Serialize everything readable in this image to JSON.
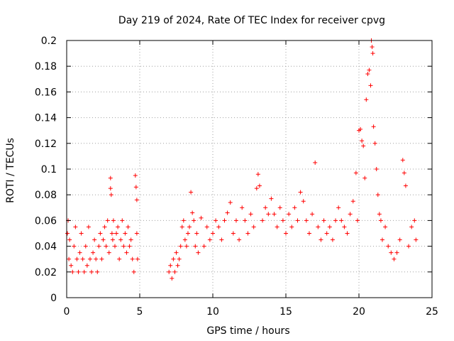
{
  "chart_data": {
    "type": "scatter",
    "title": "Day 219 of 2024, Rate Of TEC Index for receiver cpvg",
    "xlabel": "GPS time / hours",
    "ylabel": "ROTI / TECUs",
    "xlim": [
      0,
      25
    ],
    "ylim": [
      0,
      0.2
    ],
    "xticks": [
      "0",
      "5",
      "10",
      "15",
      "20",
      "25"
    ],
    "yticks": [
      "0",
      "0.02",
      "0.04",
      "0.06",
      "0.08",
      "0.1",
      "0.12",
      "0.14",
      "0.16",
      "0.18",
      "0.2"
    ],
    "grid": true,
    "marker": "+",
    "color": "#ff0000",
    "series": [
      {
        "x": [
          0.05,
          0.1,
          0.15,
          0.2,
          0.3,
          0.4,
          0.5,
          0.6,
          0.7,
          0.8,
          0.9,
          1.0,
          1.1,
          1.2,
          1.3,
          1.4,
          1.5,
          1.6,
          1.7,
          1.8,
          1.9,
          2.0,
          2.1,
          2.2,
          2.3,
          2.4,
          2.5,
          2.6,
          2.7,
          2.8,
          2.9,
          3.0,
          3.0,
          3.05,
          3.1,
          3.15,
          3.2,
          3.3,
          3.4,
          3.5,
          3.6,
          3.7,
          3.8,
          3.9,
          4.0,
          4.1,
          4.2,
          4.3,
          4.4,
          4.5,
          4.6,
          4.7,
          4.75,
          4.8,
          4.8,
          4.85,
          7.0,
          7.1,
          7.2,
          7.3,
          7.4,
          7.5,
          7.6,
          7.7,
          7.8,
          7.9,
          8.0,
          8.1,
          8.2,
          8.3,
          8.4,
          8.5,
          8.6,
          8.7,
          8.8,
          8.9,
          9.0,
          9.2,
          9.4,
          9.6,
          9.8,
          10.0,
          10.2,
          10.4,
          10.6,
          10.8,
          11.0,
          11.2,
          11.4,
          11.6,
          11.8,
          12.0,
          12.2,
          12.4,
          12.6,
          12.8,
          13.0,
          13.1,
          13.2,
          13.4,
          13.6,
          13.8,
          14.0,
          14.2,
          14.4,
          14.6,
          14.8,
          15.0,
          15.2,
          15.4,
          15.6,
          15.8,
          16.0,
          16.2,
          16.4,
          16.6,
          16.8,
          17.0,
          17.2,
          17.4,
          17.6,
          17.8,
          18.0,
          18.2,
          18.4,
          18.6,
          18.8,
          19.0,
          19.2,
          19.4,
          19.6,
          19.8,
          19.9,
          20.0,
          20.1,
          20.2,
          20.3,
          20.4,
          20.5,
          20.6,
          20.7,
          20.8,
          20.85,
          20.9,
          20.95,
          21.0,
          21.1,
          21.2,
          21.3,
          21.4,
          21.5,
          21.6,
          21.8,
          22.0,
          22.2,
          22.4,
          22.6,
          22.8,
          23.0,
          23.1,
          23.2,
          23.4,
          23.6,
          23.8,
          23.9
        ],
        "y": [
          0.05,
          0.06,
          0.03,
          0.045,
          0.025,
          0.02,
          0.04,
          0.055,
          0.03,
          0.02,
          0.035,
          0.05,
          0.03,
          0.02,
          0.04,
          0.025,
          0.055,
          0.03,
          0.02,
          0.035,
          0.045,
          0.03,
          0.02,
          0.04,
          0.05,
          0.03,
          0.045,
          0.055,
          0.04,
          0.06,
          0.035,
          0.085,
          0.093,
          0.08,
          0.05,
          0.045,
          0.06,
          0.04,
          0.05,
          0.055,
          0.03,
          0.045,
          0.06,
          0.04,
          0.05,
          0.035,
          0.055,
          0.04,
          0.045,
          0.03,
          0.02,
          0.095,
          0.086,
          0.076,
          0.05,
          0.03,
          0.02,
          0.025,
          0.015,
          0.03,
          0.02,
          0.035,
          0.025,
          0.03,
          0.04,
          0.055,
          0.06,
          0.045,
          0.04,
          0.05,
          0.055,
          0.082,
          0.066,
          0.06,
          0.04,
          0.05,
          0.035,
          0.062,
          0.04,
          0.055,
          0.045,
          0.05,
          0.06,
          0.055,
          0.045,
          0.06,
          0.066,
          0.074,
          0.05,
          0.06,
          0.045,
          0.07,
          0.06,
          0.05,
          0.065,
          0.055,
          0.085,
          0.096,
          0.087,
          0.06,
          0.07,
          0.065,
          0.077,
          0.065,
          0.055,
          0.07,
          0.06,
          0.05,
          0.065,
          0.055,
          0.07,
          0.06,
          0.082,
          0.075,
          0.06,
          0.05,
          0.065,
          0.105,
          0.055,
          0.045,
          0.06,
          0.05,
          0.055,
          0.045,
          0.06,
          0.07,
          0.06,
          0.055,
          0.05,
          0.065,
          0.075,
          0.097,
          0.06,
          0.13,
          0.131,
          0.122,
          0.118,
          0.093,
          0.154,
          0.174,
          0.177,
          0.165,
          0.2,
          0.195,
          0.19,
          0.133,
          0.12,
          0.1,
          0.08,
          0.065,
          0.06,
          0.045,
          0.055,
          0.04,
          0.035,
          0.03,
          0.035,
          0.045,
          0.107,
          0.097,
          0.087,
          0.04,
          0.055,
          0.06,
          0.045
        ]
      }
    ]
  }
}
